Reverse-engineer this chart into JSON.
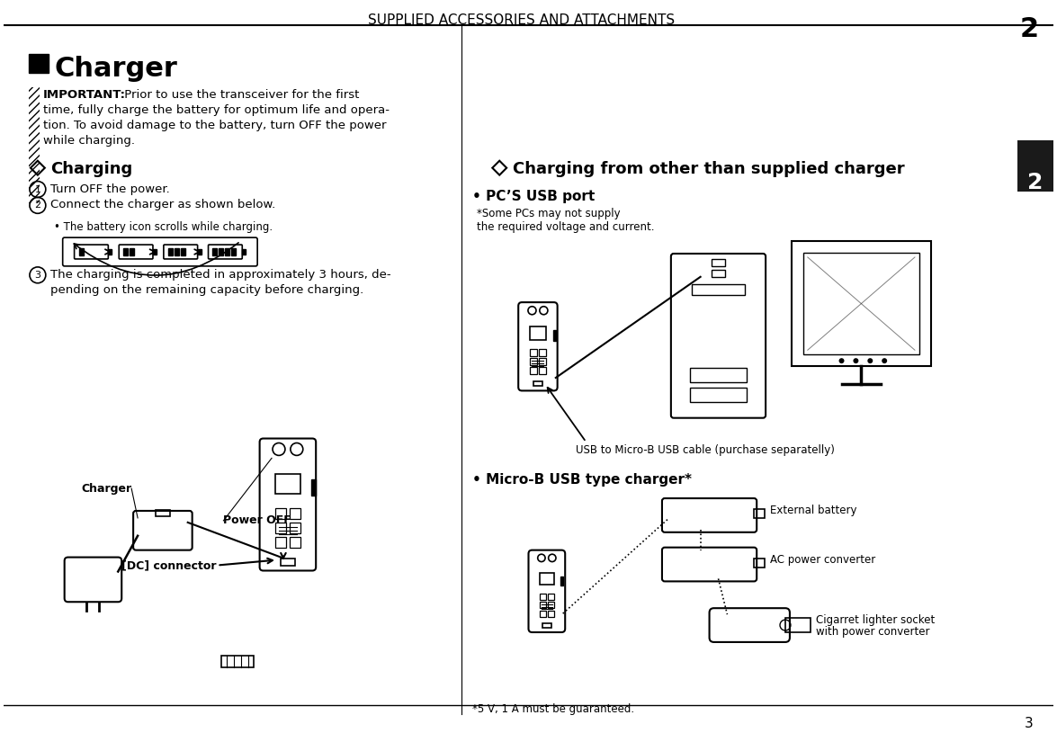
{
  "page_title": "SUPPLIED ACCESSORIES AND ATTACHMENTS",
  "page_number": "2",
  "chapter_number": "2",
  "section_title": "Charger",
  "charging_title": "Charging",
  "charging_steps": [
    "Turn OFF the power.",
    "Connect the charger as shown below.",
    "The charging is completed in approximately 3 hours, de-",
    "pending on the remaining capacity before charging."
  ],
  "battery_scroll_note": "The battery icon scrolls while charging.",
  "right_section_title": "Charging from other than supplied charger",
  "pc_usb_title": "PC’S USB port",
  "usb_cable_label": "USB to Micro-B USB cable (purchase separatelly)",
  "micro_b_title": "Micro-B USB type charger*",
  "external_battery_label": "External battery",
  "ac_converter_label": "AC power converter",
  "cigarret_label_1": "Cigarret lighter socket",
  "cigarret_label_2": "with power converter",
  "bottom_note": "*5 V, 1 A must be guaranteed.",
  "power_off_label": "Power OFF",
  "charger_label": "Charger",
  "dc_connector_label": "[DC] connector",
  "bg_color": "#ffffff",
  "text_color": "#000000",
  "title_color": "#000000",
  "page_num_bg": "#1a1a1a",
  "page_num_color": "#ffffff"
}
